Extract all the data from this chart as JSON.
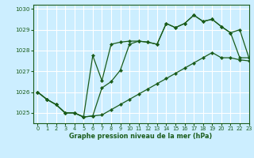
{
  "xlabel": "Graphe pression niveau de la mer (hPa)",
  "bg_color": "#cceeff",
  "grid_color": "#ffffff",
  "line_color": "#1a5c1a",
  "ylim": [
    1024.5,
    1030.2
  ],
  "xlim": [
    -0.5,
    23
  ],
  "yticks": [
    1025,
    1026,
    1027,
    1028,
    1029,
    1030
  ],
  "xticks": [
    0,
    1,
    2,
    3,
    4,
    5,
    6,
    7,
    8,
    9,
    10,
    11,
    12,
    13,
    14,
    15,
    16,
    17,
    18,
    19,
    20,
    21,
    22,
    23
  ],
  "series": [
    [
      1026.0,
      1025.65,
      1025.4,
      1025.0,
      1025.0,
      1024.8,
      1024.85,
      1024.9,
      1025.15,
      1025.4,
      1025.65,
      1025.9,
      1026.15,
      1026.4,
      1026.65,
      1026.9,
      1027.15,
      1027.4,
      1027.65,
      1027.9,
      1027.65,
      1027.65,
      1027.55,
      1027.5
    ],
    [
      1026.0,
      1025.65,
      1025.4,
      1025.0,
      1025.0,
      1024.8,
      1027.75,
      1026.55,
      1028.3,
      1028.4,
      1028.45,
      1028.45,
      1028.4,
      1028.3,
      1029.3,
      1029.1,
      1029.3,
      1029.7,
      1029.4,
      1029.5,
      1029.15,
      1028.85,
      1029.0,
      1027.65
    ],
    [
      1026.0,
      1025.65,
      1025.4,
      1025.0,
      1025.0,
      1024.8,
      1024.85,
      1026.2,
      1026.5,
      1027.05,
      1028.3,
      1028.45,
      1028.4,
      1028.3,
      1029.3,
      1029.1,
      1029.3,
      1029.7,
      1029.4,
      1029.5,
      1029.15,
      1028.85,
      1027.65,
      1027.65
    ]
  ]
}
